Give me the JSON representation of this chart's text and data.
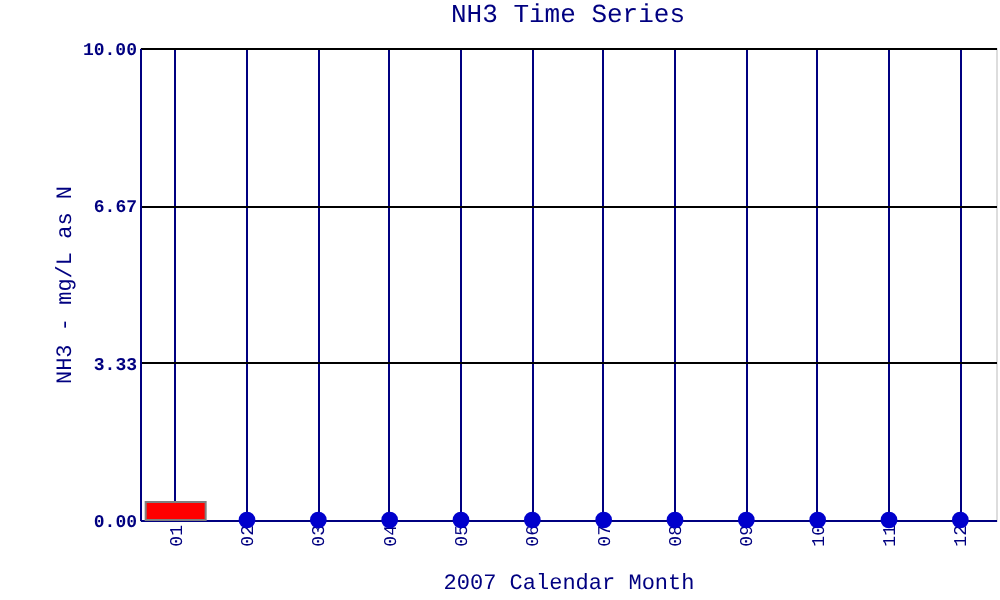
{
  "chart_data": {
    "type": "bar",
    "title": "NH3 Time Series",
    "xlabel": "2007 Calendar Month",
    "ylabel": "NH3 - mg/L as N",
    "categories": [
      "01",
      "02",
      "03",
      "04",
      "05",
      "06",
      "07",
      "08",
      "09",
      "10",
      "11",
      "12"
    ],
    "series": [
      {
        "color": "#ff0000",
        "values": [
          0.38,
          null,
          null,
          null,
          null,
          null,
          null,
          null,
          null,
          null,
          null,
          null
        ]
      },
      {
        "type": "scatter",
        "color": "#0000cc",
        "marker": "circle",
        "values": [
          null,
          0,
          0,
          0,
          0,
          0,
          0,
          0,
          0,
          0,
          0,
          0
        ]
      }
    ],
    "ylim": [
      0,
      10
    ],
    "yticks": [
      {
        "value": 0,
        "label": "0.00"
      },
      3.33,
      6.67,
      {
        "value": 10,
        "label": "10.00"
      }
    ],
    "grid": true
  }
}
